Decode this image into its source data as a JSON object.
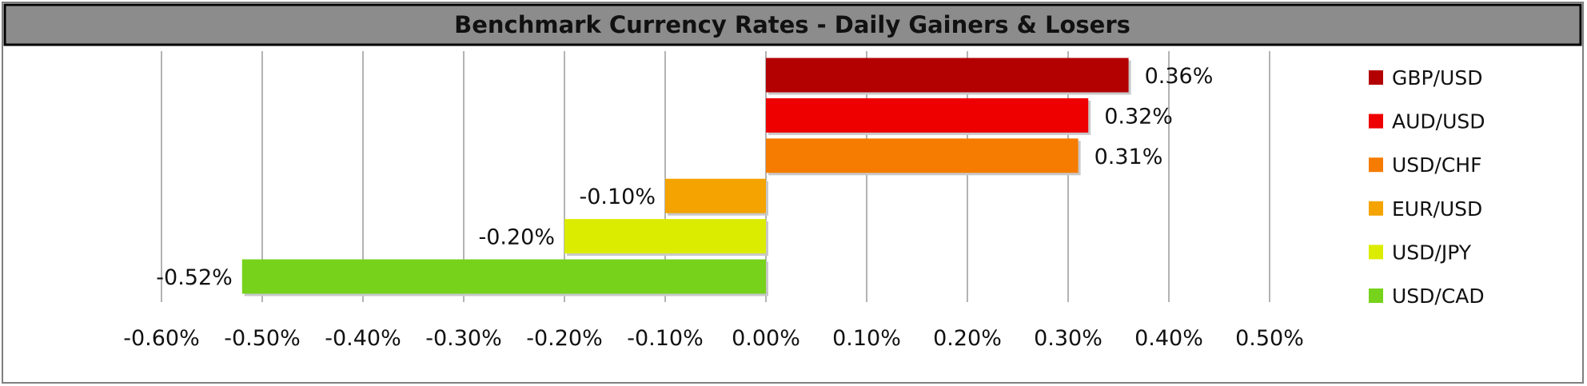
{
  "chart_data": {
    "type": "bar",
    "orientation": "horizontal",
    "title": "Benchmark Currency Rates - Daily Gainers & Losers",
    "categories": [
      "GBP/USD",
      "AUD/USD",
      "USD/CHF",
      "EUR/USD",
      "USD/JPY",
      "USD/CAD"
    ],
    "values": [
      0.36,
      0.32,
      0.31,
      -0.1,
      -0.2,
      -0.52
    ],
    "data_labels": [
      "0.36%",
      "0.32%",
      "0.31%",
      "-0.10%",
      "-0.20%",
      "-0.52%"
    ],
    "colors": [
      "#b30000",
      "#ee0000",
      "#f57c00",
      "#f4a300",
      "#dcec00",
      "#76d21b"
    ],
    "xlim": [
      -0.6,
      0.5
    ],
    "x_ticks": [
      -0.6,
      -0.5,
      -0.4,
      -0.3,
      -0.2,
      -0.1,
      0.0,
      0.1,
      0.2,
      0.3,
      0.4,
      0.5
    ],
    "x_tick_labels": [
      "-0.60%",
      "-0.50%",
      "-0.40%",
      "-0.30%",
      "-0.20%",
      "-0.10%",
      "0.00%",
      "0.10%",
      "0.20%",
      "0.30%",
      "0.40%",
      "0.50%"
    ],
    "grid": "vertical",
    "legend": "right"
  }
}
